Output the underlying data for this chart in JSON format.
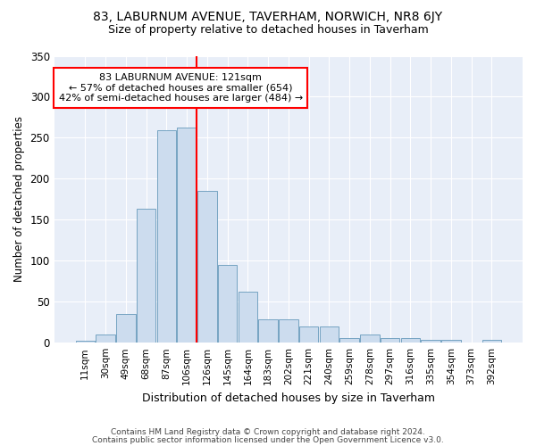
{
  "title1": "83, LABURNUM AVENUE, TAVERHAM, NORWICH, NR8 6JY",
  "title2": "Size of property relative to detached houses in Taverham",
  "xlabel": "Distribution of detached houses by size in Taverham",
  "ylabel": "Number of detached properties",
  "categories": [
    "11sqm",
    "30sqm",
    "49sqm",
    "68sqm",
    "87sqm",
    "106sqm",
    "126sqm",
    "145sqm",
    "164sqm",
    "183sqm",
    "202sqm",
    "221sqm",
    "240sqm",
    "259sqm",
    "278sqm",
    "297sqm",
    "316sqm",
    "335sqm",
    "354sqm",
    "373sqm",
    "392sqm"
  ],
  "values": [
    2,
    10,
    35,
    163,
    259,
    262,
    185,
    95,
    62,
    29,
    29,
    20,
    20,
    6,
    10,
    6,
    6,
    4,
    3,
    0,
    3
  ],
  "bar_color": "#ccdcee",
  "bar_edge_color": "#6699bb",
  "red_line_index": 6,
  "annotation_line1": "83 LABURNUM AVENUE: 121sqm",
  "annotation_line2": "← 57% of detached houses are smaller (654)",
  "annotation_line3": "42% of semi-detached houses are larger (484) →",
  "annotation_box_color": "white",
  "annotation_box_edge": "red",
  "red_line_color": "red",
  "ylim": [
    0,
    350
  ],
  "yticks": [
    0,
    50,
    100,
    150,
    200,
    250,
    300,
    350
  ],
  "footer1": "Contains HM Land Registry data © Crown copyright and database right 2024.",
  "footer2": "Contains public sector information licensed under the Open Government Licence v3.0.",
  "bg_color": "#ffffff",
  "plot_bg_color": "#e8eef8",
  "grid_color": "#ffffff"
}
